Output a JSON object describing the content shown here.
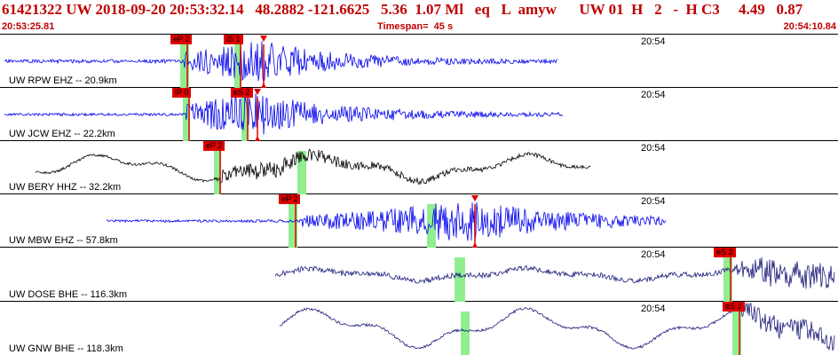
{
  "header": {
    "title": "61421322 UW 2018-09-20 20:53:32.14   48.2882 -121.6625   5.36  1.07 Ml   eq   L  amyw      UW 01  H   2   -  H C3     4.49   0.87",
    "start_time": "20:53:25.81",
    "timespan": "Timespan=  45 s",
    "end_time": "20:54:10.84"
  },
  "panels": [
    {
      "label": "UW RPW EHZ -- 20.9km",
      "time_label": "20:54",
      "trace_color": "#0000ee",
      "highlight_color": "#90ee90",
      "pick_color": "#e00000",
      "picks": [
        {
          "label": "eP 2",
          "x": 208,
          "hl": 10
        },
        {
          "label": "iS 1",
          "x": 268,
          "hl": 8
        },
        {
          "label": "",
          "x": 294,
          "hl": 0,
          "amp": true
        }
      ],
      "trace": {
        "start": 5,
        "end": 628,
        "onset": 208,
        "peak": 290,
        "base": 2,
        "amp": 24,
        "decay": 0.006,
        "low": 0,
        "seed": 11
      }
    },
    {
      "label": "UW JCW EHZ -- 22.2km",
      "time_label": "20:54",
      "trace_color": "#0000ee",
      "highlight_color": "#90ee90",
      "pick_color": "#e00000",
      "picks": [
        {
          "label": "iP 0",
          "x": 210,
          "hl": 8
        },
        {
          "label": "eS 2",
          "x": 276,
          "hl": 8
        },
        {
          "label": "",
          "x": 287,
          "hl": 0,
          "amp": true
        }
      ],
      "trace": {
        "start": 5,
        "end": 634,
        "onset": 210,
        "peak": 284,
        "base": 1.5,
        "amp": 24,
        "decay": 0.005,
        "low": 0,
        "seed": 23
      }
    },
    {
      "label": "UW BERY HHZ -- 32.2km",
      "time_label": "20:54",
      "trace_color": "#000000",
      "highlight_color": "#90ee90",
      "pick_color": "#e00000",
      "picks": [
        {
          "label": "eP 2",
          "x": 245,
          "hl": 8
        },
        {
          "label": "",
          "x": 340,
          "hl": 10,
          "nolabel": true
        }
      ],
      "trace": {
        "start": 40,
        "end": 665,
        "onset": 245,
        "peak": 300,
        "base": 1.5,
        "amp": 9,
        "decay": 0.004,
        "low": 11,
        "seed": 37
      }
    },
    {
      "label": "UW MBW EHZ -- 57.8km",
      "time_label": "20:54",
      "trace_color": "#0000ee",
      "highlight_color": "#90ee90",
      "pick_color": "#e00000",
      "picks": [
        {
          "label": "eP 2",
          "x": 330,
          "hl": 10
        },
        {
          "label": "",
          "x": 486,
          "hl": 10,
          "nolabel": true
        },
        {
          "label": "",
          "x": 532,
          "hl": 0,
          "amp": true
        }
      ],
      "trace": {
        "start": 120,
        "end": 750,
        "onset": 340,
        "peak": 520,
        "base": 1.5,
        "amp": 24,
        "decay": 0.004,
        "low": 0,
        "seed": 53
      }
    },
    {
      "label": "UW DOSE BHE -- 116.3km",
      "time_label": "20:54",
      "trace_color": "#1a1a7a",
      "highlight_color": "#90ee90",
      "pick_color": "#e00000",
      "picks": [
        {
          "label": "",
          "x": 518,
          "hl": 12,
          "nolabel": true
        },
        {
          "label": "eS 2",
          "x": 820,
          "hl": 10
        }
      ],
      "trace": {
        "start": 310,
        "end": 940,
        "onset": 830,
        "peak": 870,
        "base": 3,
        "amp": 16,
        "decay": 0.0,
        "low": 5,
        "seed": 71
      }
    },
    {
      "label": "UW GNW BHE -- 118.3km",
      "time_label": "20:54",
      "trace_color": "#1a1a7a",
      "highlight_color": "#90ee90",
      "pick_color": "#e00000",
      "picks": [
        {
          "label": "",
          "x": 524,
          "hl": 10,
          "nolabel": true
        },
        {
          "label": "eS 2",
          "x": 830,
          "hl": 10
        }
      ],
      "trace": {
        "start": 315,
        "end": 940,
        "onset": 835,
        "peak": 860,
        "base": 1.5,
        "amp": 14,
        "decay": 0.0,
        "low": 16,
        "seed": 89
      }
    }
  ]
}
